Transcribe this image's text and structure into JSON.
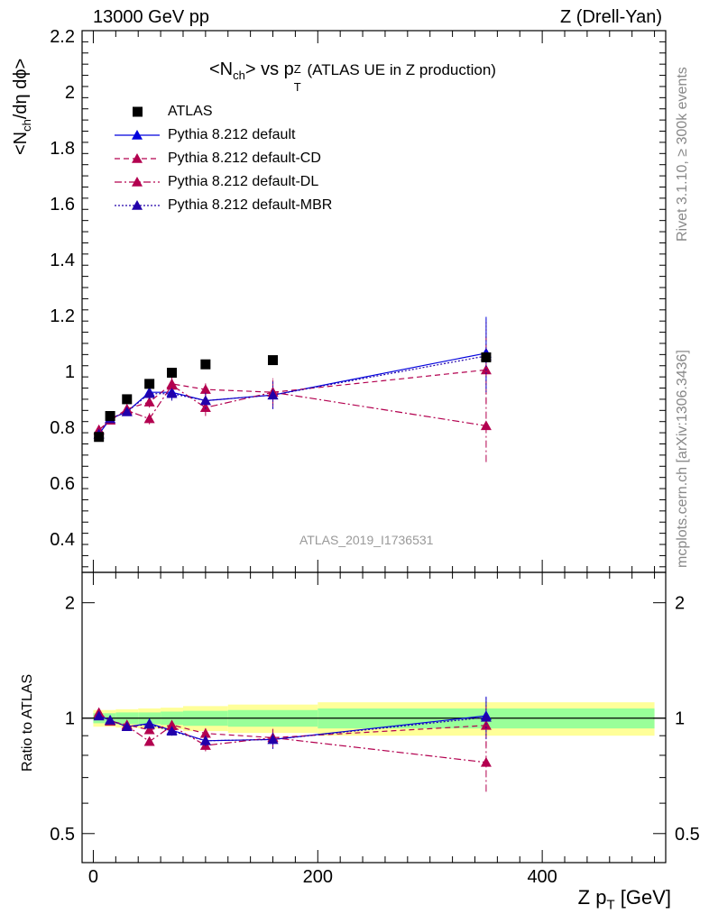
{
  "header": {
    "left": "13000 GeV pp",
    "right": "Z (Drell-Yan)"
  },
  "side_text": {
    "top": "Rivet 3.1.10, ≥ 300k events",
    "bottom": "mcplots.cern.ch [arXiv:1306.3436]"
  },
  "plot_title": {
    "main": "<N",
    "main_sub": "ch",
    "mid": "> vs p",
    "mid_sup": "Z",
    "mid_sub": "T",
    "tail": " (ATLAS UE in Z production)"
  },
  "ylabel_main": "<N",
  "ylabel_main_sub": "ch",
  "ylabel_main_tail": "/dη dϕ>",
  "ylabel_ratio": "Ratio to ATLAS",
  "xlabel": "Z p",
  "xlabel_sub": "T",
  "xlabel_tail": " [GeV]",
  "watermark": "ATLAS_2019_I1736531",
  "legend": [
    {
      "label": "ATLAS"
    },
    {
      "label": "Pythia 8.212 default"
    },
    {
      "label": "Pythia 8.212 default-CD"
    },
    {
      "label": "Pythia 8.212 default-DL"
    },
    {
      "label": "Pythia 8.212 default-MBR"
    }
  ],
  "chart_data": {
    "type": "scatter",
    "main_panel": {
      "ylim": [
        0.28,
        2.22
      ],
      "y_ticks": [
        0.4,
        0.6,
        0.8,
        1,
        1.2,
        1.4,
        1.6,
        1.8,
        2,
        2.2
      ],
      "y_tick_labels": [
        "0.4",
        "0.6",
        "0.8",
        "1",
        "1.2",
        "1.4",
        "1.6",
        "1.8",
        "2",
        "2.2"
      ]
    },
    "ratio_panel": {
      "ylim": [
        0.42,
        2.4
      ],
      "log_scale": true,
      "y_ticks": [
        0.5,
        1,
        2
      ],
      "y_tick_labels": [
        "0.5",
        "1",
        "2"
      ]
    },
    "xlim": [
      -10,
      510
    ],
    "x_ticks": [
      0,
      200,
      400
    ],
    "x_tick_labels": [
      "0",
      "200",
      "400"
    ],
    "data": {
      "name": "ATLAS",
      "color": "#000000",
      "x": [
        5,
        15,
        30,
        50,
        70,
        100,
        160,
        350
      ],
      "y": [
        0.765,
        0.84,
        0.9,
        0.955,
        0.995,
        1.025,
        1.04,
        1.05
      ],
      "band_x": [
        0,
        10,
        20,
        40,
        60,
        80,
        120,
        200,
        500
      ],
      "band_inner_rel": [
        0.03,
        0.03,
        0.035,
        0.035,
        0.04,
        0.045,
        0.05,
        0.06
      ],
      "band_outer_rel": [
        0.05,
        0.05,
        0.055,
        0.06,
        0.065,
        0.075,
        0.085,
        0.1
      ]
    },
    "series": [
      {
        "name": "Pythia 8.212 default",
        "color": "#0000dd",
        "dash": "",
        "x": [
          5,
          15,
          30,
          50,
          70,
          100,
          160,
          350
        ],
        "y": [
          0.775,
          0.83,
          0.855,
          0.925,
          0.925,
          0.895,
          0.915,
          1.065
        ],
        "err": [
          0.01,
          0.01,
          0.015,
          0.02,
          0.025,
          0.03,
          0.05,
          0.13
        ]
      },
      {
        "name": "Pythia 8.212 default-CD",
        "color": "#b3004f",
        "dash": "6,4",
        "x": [
          5,
          15,
          30,
          50,
          70,
          100,
          160,
          350
        ],
        "y": [
          0.79,
          0.825,
          0.865,
          0.89,
          0.955,
          0.935,
          0.925,
          1.005
        ],
        "err": [
          0.01,
          0.01,
          0.015,
          0.02,
          0.025,
          0.03,
          0.05,
          0.12
        ]
      },
      {
        "name": "Pythia 8.212 default-DL",
        "color": "#b3004f",
        "dash": "8,3,2,3",
        "x": [
          5,
          15,
          30,
          50,
          70,
          100,
          160,
          350
        ],
        "y": [
          0.79,
          0.825,
          0.86,
          0.83,
          0.95,
          0.87,
          0.925,
          0.805
        ],
        "err": [
          0.01,
          0.01,
          0.015,
          0.02,
          0.025,
          0.03,
          0.05,
          0.13
        ]
      },
      {
        "name": "Pythia 8.212 default-MBR",
        "color": "#2200aa",
        "dash": "2,2",
        "x": [
          5,
          15,
          30,
          50,
          70,
          100,
          160,
          350
        ],
        "y": [
          0.775,
          0.83,
          0.855,
          0.92,
          0.92,
          0.895,
          0.915,
          1.055
        ],
        "err": [
          0.01,
          0.01,
          0.015,
          0.02,
          0.025,
          0.03,
          0.05,
          0.13
        ]
      }
    ]
  }
}
